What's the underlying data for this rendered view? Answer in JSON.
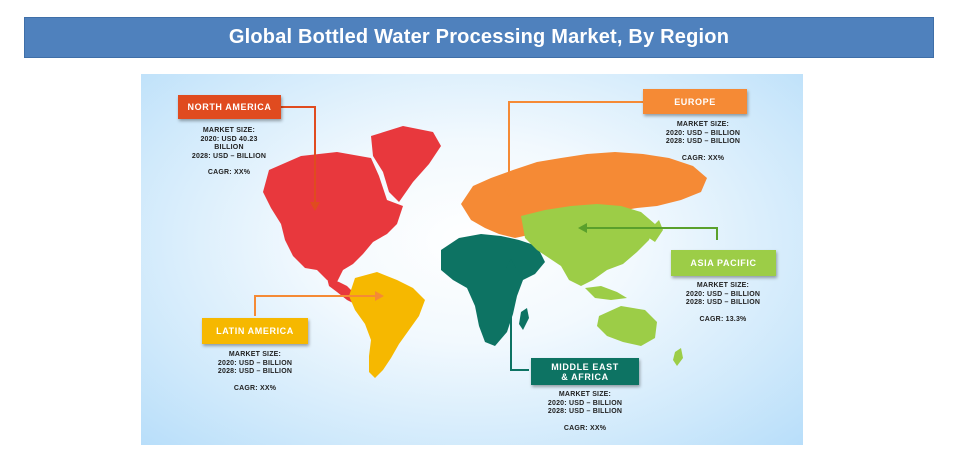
{
  "title": "Global Bottled Water Processing Market, By Region",
  "colors": {
    "banner": "#4f81bd",
    "north_america": "#e8383d",
    "europe": "#f58a35",
    "asia_pacific": "#9ccd47",
    "latin_america": "#f6b800",
    "mea": "#0d7363"
  },
  "regions": {
    "north_america": {
      "name": "NORTH AMERICA",
      "market_size_label": "MARKET SIZE:",
      "line_2020": "2020: USD 40.23",
      "line_2020b": "BILLION",
      "line_2028": "2028: USD – BILLION",
      "cagr": "CAGR: XX%"
    },
    "europe": {
      "name": "EUROPE",
      "market_size_label": "MARKET SIZE:",
      "line_2020": "2020: USD – BILLION",
      "line_2028": "2028: USD – BILLION",
      "cagr": "CAGR: XX%"
    },
    "asia_pacific": {
      "name": "ASIA PACIFIC",
      "market_size_label": "MARKET SIZE:",
      "line_2020": "2020: USD – BILLION",
      "line_2028": "2028: USD – BILLION",
      "cagr": "CAGR: 13.3%"
    },
    "latin_america": {
      "name": "LATIN AMERICA",
      "market_size_label": "MARKET SIZE:",
      "line_2020": "2020: USD – BILLION",
      "line_2028": "2028: USD – BILLION",
      "cagr": "CAGR: XX%"
    },
    "mea": {
      "name_line1": "MIDDLE EAST",
      "name_line2": "& AFRICA",
      "market_size_label": "MARKET SIZE:",
      "line_2020": "2020: USD – BILLION",
      "line_2028": "2028: USD – BILLION",
      "cagr": "CAGR: XX%"
    }
  }
}
